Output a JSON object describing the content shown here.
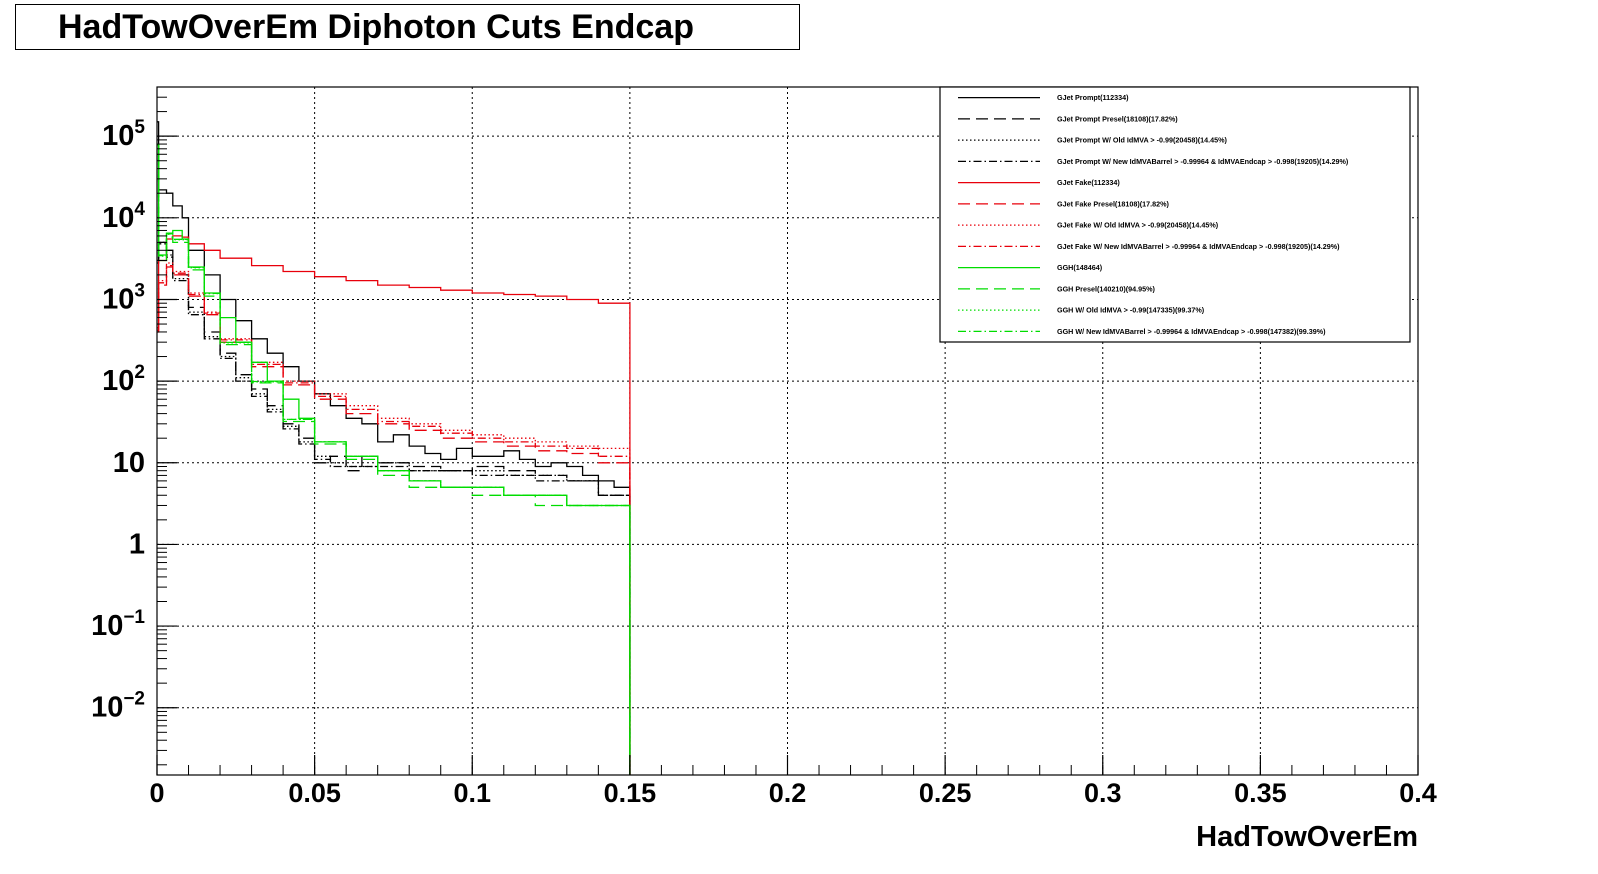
{
  "chart_data": {
    "type": "line",
    "title": "HadTowOverEm Diphoton Cuts Endcap",
    "xlabel": "HadTowOverEm",
    "ylabel": "",
    "xlim": [
      0,
      0.4
    ],
    "ylim": [
      0.0015,
      400000
    ],
    "y_scale": "log",
    "grid": true,
    "legend_position": "top-right",
    "x_tick_labels": [
      "0",
      "0.05",
      "0.1",
      "0.15",
      "0.2",
      "0.25",
      "0.3",
      "0.35",
      "0.4"
    ],
    "y_tick_labels": [
      {
        "base": "10",
        "exp": "5",
        "value": 100000
      },
      {
        "base": "10",
        "exp": "4",
        "value": 10000
      },
      {
        "base": "10",
        "exp": "3",
        "value": 1000
      },
      {
        "base": "10",
        "exp": "2",
        "value": 100
      },
      {
        "base": "10",
        "exp": "",
        "value": 10
      },
      {
        "base": "1",
        "exp": "",
        "value": 1
      },
      {
        "base": "10",
        "exp": "−1",
        "value": 0.1
      },
      {
        "base": "10",
        "exp": "−2",
        "value": 0.01
      }
    ],
    "series": [
      {
        "name": "GJet Prompt(112334)",
        "color": "#000000",
        "dash": "solid",
        "x": [
          0.0005,
          0.003,
          0.005,
          0.008,
          0.01,
          0.015,
          0.02,
          0.025,
          0.03,
          0.035,
          0.04,
          0.045,
          0.05,
          0.055,
          0.06,
          0.065,
          0.07,
          0.075,
          0.08,
          0.085,
          0.09,
          0.095,
          0.1,
          0.105,
          0.11,
          0.115,
          0.12,
          0.125,
          0.13,
          0.135,
          0.14,
          0.145,
          0.15
        ],
        "y": [
          150000,
          22000,
          20000,
          14000,
          10000,
          4000,
          2000,
          1000,
          550,
          330,
          220,
          150,
          100,
          70,
          50,
          35,
          30,
          18,
          22,
          16,
          13,
          11,
          15,
          12,
          12,
          14,
          11,
          9,
          10,
          9,
          7,
          6,
          5
        ]
      },
      {
        "name": "GJet Prompt Presel(18108)(17.82%)",
        "color": "#000000",
        "dash": "long",
        "x": [
          0.0005,
          0.003,
          0.005,
          0.01,
          0.015,
          0.02,
          0.025,
          0.03,
          0.035,
          0.04,
          0.045,
          0.05,
          0.055,
          0.06,
          0.065,
          0.07,
          0.08,
          0.09,
          0.1,
          0.11,
          0.12,
          0.13,
          0.14,
          0.15
        ],
        "y": [
          3000,
          5000,
          4000,
          2000,
          800,
          400,
          220,
          120,
          80,
          50,
          30,
          20,
          10,
          12,
          8,
          12,
          10,
          9,
          8,
          9,
          8,
          7,
          6,
          4
        ]
      },
      {
        "name": "GJet Prompt W/ Old IdMVA > -0.99(20458)(14.45%)",
        "color": "#000000",
        "dash": "dotted",
        "x": [
          0.0005,
          0.003,
          0.005,
          0.01,
          0.015,
          0.02,
          0.025,
          0.03,
          0.035,
          0.04,
          0.045,
          0.05,
          0.055,
          0.06,
          0.07,
          0.08,
          0.09,
          0.1,
          0.11,
          0.12,
          0.13,
          0.14,
          0.15
        ],
        "y": [
          3000,
          5000,
          3500,
          1800,
          700,
          350,
          200,
          110,
          70,
          45,
          28,
          18,
          12,
          10,
          9,
          10,
          8,
          8,
          8,
          7,
          7,
          6,
          4
        ]
      },
      {
        "name": "GJet Prompt W/ New IdMVABarrel > -0.99964 & IdMVAEndcap > -0.998(19205)(14.29%)",
        "color": "#000000",
        "dash": "dashdot",
        "x": [
          0.0005,
          0.003,
          0.005,
          0.01,
          0.015,
          0.02,
          0.025,
          0.03,
          0.035,
          0.04,
          0.045,
          0.05,
          0.055,
          0.06,
          0.07,
          0.08,
          0.09,
          0.1,
          0.11,
          0.12,
          0.13,
          0.14,
          0.15
        ],
        "y": [
          2800,
          4800,
          3300,
          1700,
          650,
          330,
          190,
          100,
          65,
          42,
          26,
          17,
          11,
          9,
          9,
          9,
          8,
          8,
          7,
          7,
          6,
          6,
          4
        ]
      },
      {
        "name": "GJet Fake(112334)",
        "color": "#e8000b",
        "dash": "solid",
        "x": [
          0.0005,
          0.003,
          0.005,
          0.008,
          0.01,
          0.015,
          0.02,
          0.03,
          0.04,
          0.05,
          0.06,
          0.07,
          0.08,
          0.09,
          0.1,
          0.11,
          0.12,
          0.13,
          0.14,
          0.15
        ],
        "y": [
          500,
          3000,
          5500,
          6000,
          5800,
          4800,
          4000,
          3200,
          2600,
          2200,
          1900,
          1700,
          1500,
          1400,
          1300,
          1200,
          1150,
          1100,
          1000,
          900
        ]
      },
      {
        "name": "GJet Fake Presel(18108)(17.82%)",
        "color": "#e8000b",
        "dash": "long",
        "x": [
          0.0005,
          0.003,
          0.005,
          0.01,
          0.015,
          0.02,
          0.03,
          0.04,
          0.05,
          0.06,
          0.07,
          0.08,
          0.09,
          0.1,
          0.11,
          0.12,
          0.13,
          0.14,
          0.15
        ],
        "y": [
          400,
          1500,
          2500,
          2000,
          1100,
          650,
          300,
          150,
          90,
          60,
          40,
          30,
          25,
          20,
          18,
          16,
          14,
          13,
          10
        ]
      },
      {
        "name": "GJet Fake W/ Old IdMVA > -0.99(20458)(14.45%)",
        "color": "#e8000b",
        "dash": "dotted",
        "x": [
          0.0005,
          0.003,
          0.005,
          0.01,
          0.015,
          0.02,
          0.03,
          0.04,
          0.05,
          0.06,
          0.07,
          0.08,
          0.09,
          0.1,
          0.11,
          0.12,
          0.13,
          0.14,
          0.15
        ],
        "y": [
          450,
          1700,
          2800,
          2200,
          1200,
          700,
          330,
          170,
          100,
          70,
          50,
          35,
          30,
          25,
          22,
          20,
          18,
          16,
          15
        ]
      },
      {
        "name": "GJet Fake W/ New IdMVABarrel > -0.99964 & IdMVAEndcap > -0.998(19205)(14.29%)",
        "color": "#e8000b",
        "dash": "dashdot",
        "x": [
          0.0005,
          0.003,
          0.005,
          0.01,
          0.015,
          0.02,
          0.03,
          0.04,
          0.05,
          0.06,
          0.07,
          0.08,
          0.09,
          0.1,
          0.11,
          0.12,
          0.13,
          0.14,
          0.15
        ],
        "y": [
          420,
          1600,
          2600,
          2100,
          1150,
          680,
          320,
          160,
          95,
          65,
          45,
          32,
          28,
          23,
          20,
          18,
          16,
          15,
          12
        ]
      },
      {
        "name": "GGH(148464)",
        "color": "#00dd00",
        "dash": "solid",
        "x": [
          0.0005,
          0.003,
          0.005,
          0.008,
          0.01,
          0.015,
          0.02,
          0.025,
          0.03,
          0.035,
          0.04,
          0.045,
          0.05,
          0.06,
          0.07,
          0.08,
          0.09,
          0.1,
          0.11,
          0.12,
          0.13,
          0.14,
          0.15
        ],
        "y": [
          80000,
          3500,
          6500,
          7000,
          5500,
          2500,
          1200,
          600,
          300,
          170,
          100,
          60,
          35,
          18,
          12,
          8,
          6,
          5,
          5,
          4,
          4,
          3,
          3
        ]
      },
      {
        "name": "GGH Presel(140210)(94.95%)",
        "color": "#00dd00",
        "dash": "long",
        "x": [
          0.0005,
          0.003,
          0.005,
          0.01,
          0.015,
          0.02,
          0.03,
          0.04,
          0.05,
          0.06,
          0.07,
          0.08,
          0.09,
          0.1,
          0.11,
          0.12,
          0.13,
          0.14,
          0.15
        ],
        "y": [
          60000,
          3000,
          5800,
          5000,
          2300,
          1100,
          280,
          95,
          32,
          17,
          11,
          7,
          5,
          5,
          4,
          4,
          3,
          3,
          3
        ]
      },
      {
        "name": "GGH W/ Old IdMVA > -0.99(147335)(99.37%)",
        "color": "#00dd00",
        "dash": "dotted",
        "x": [
          0.0005,
          0.003,
          0.005,
          0.01,
          0.015,
          0.02,
          0.03,
          0.04,
          0.05,
          0.06,
          0.07,
          0.08,
          0.09,
          0.1,
          0.11,
          0.12,
          0.13,
          0.14,
          0.15
        ],
        "y": [
          78000,
          3400,
          6300,
          5400,
          2450,
          1180,
          295,
          98,
          34,
          18,
          12,
          8,
          6,
          5,
          5,
          4,
          4,
          3,
          3
        ]
      },
      {
        "name": "GGH W/ New IdMVABarrel > -0.99964 & IdMVAEndcap > -0.998(147382)(99.39%)",
        "color": "#00dd00",
        "dash": "dashdot",
        "x": [
          0.0005,
          0.003,
          0.005,
          0.01,
          0.015,
          0.02,
          0.03,
          0.04,
          0.05,
          0.06,
          0.07,
          0.08,
          0.09,
          0.1,
          0.11,
          0.12,
          0.13,
          0.14,
          0.15
        ],
        "y": [
          78500,
          3450,
          6350,
          5450,
          2480,
          1190,
          298,
          99,
          34,
          18,
          12,
          8,
          6,
          5,
          5,
          4,
          4,
          3,
          3
        ]
      }
    ]
  }
}
